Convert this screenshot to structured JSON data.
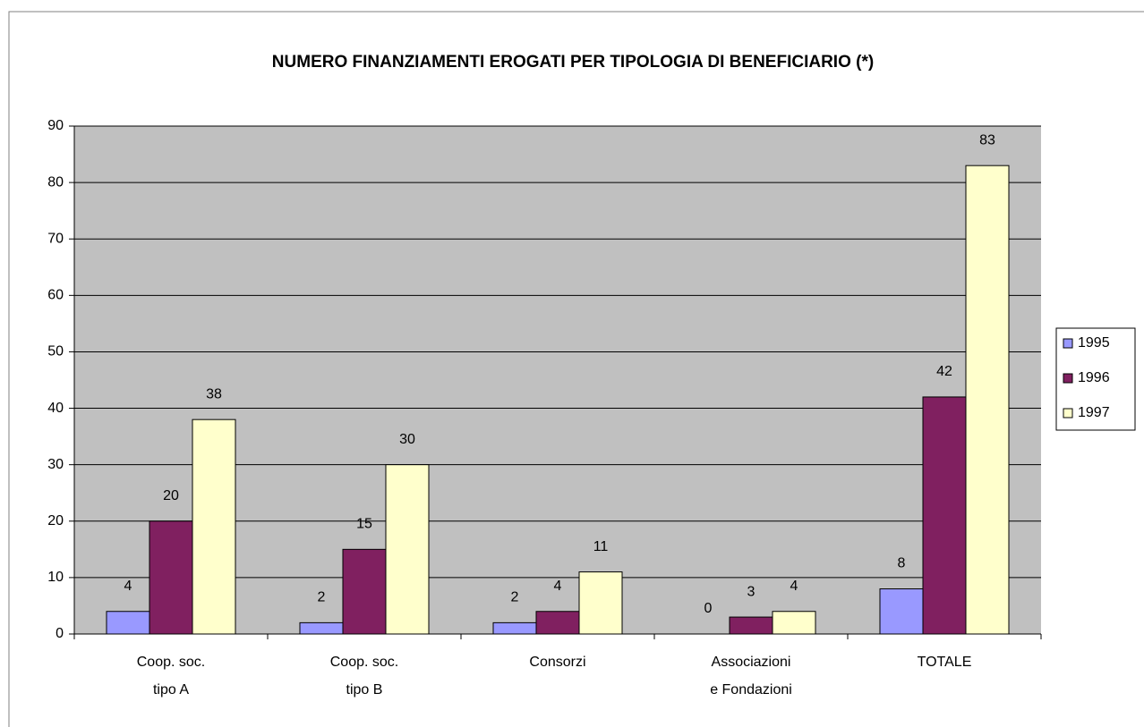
{
  "chart_data": {
    "type": "bar",
    "title": "NUMERO FINANZIAMENTI EROGATI PER TIPOLOGIA DI BENEFICIARIO (*)",
    "categories": [
      [
        "Coop. soc.",
        "tipo A"
      ],
      [
        "Coop. soc.",
        "tipo B"
      ],
      [
        "Consorzi"
      ],
      [
        "Associazioni",
        "e Fondazioni"
      ],
      [
        "TOTALE"
      ]
    ],
    "series": [
      {
        "name": "1995",
        "color": "#9999ff",
        "values": [
          4,
          2,
          2,
          0,
          8
        ]
      },
      {
        "name": "1996",
        "color": "#802060",
        "values": [
          20,
          15,
          4,
          3,
          42
        ]
      },
      {
        "name": "1997",
        "color": "#ffffcc",
        "values": [
          38,
          30,
          11,
          4,
          83
        ]
      }
    ],
    "ylim": [
      0,
      90
    ],
    "yticks": [
      0,
      10,
      20,
      30,
      40,
      50,
      60,
      70,
      80,
      90
    ],
    "grid": true,
    "legend": "right"
  }
}
